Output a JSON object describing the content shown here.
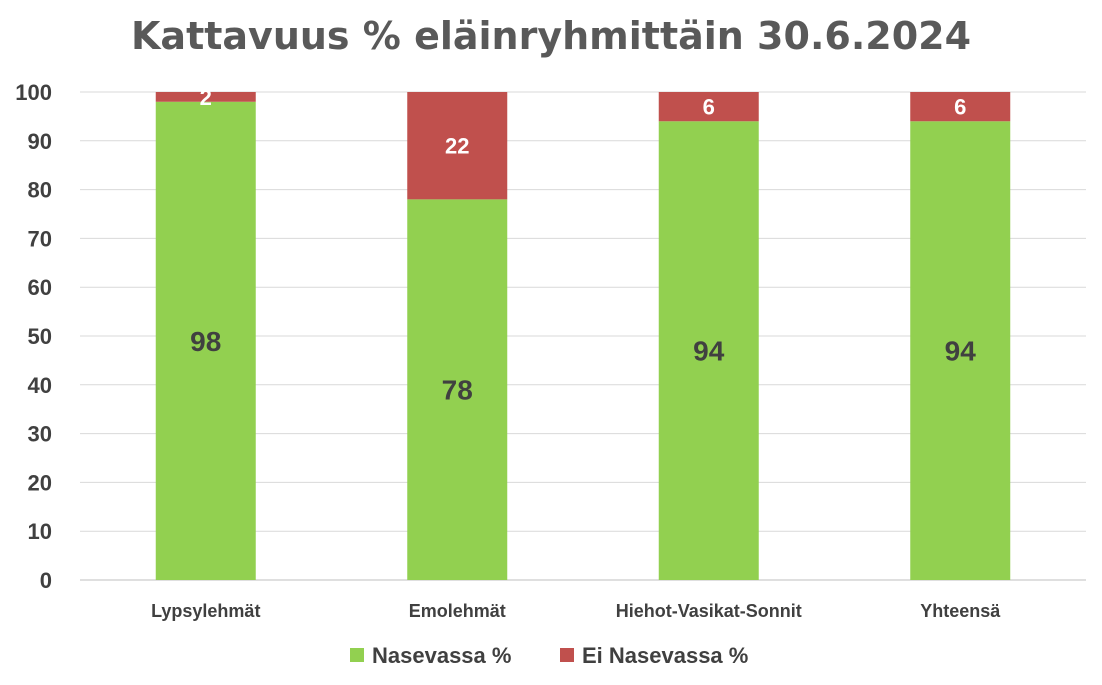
{
  "chart_data": {
    "type": "bar",
    "stacked": true,
    "title": "Kattavuus % eläinryhmittäin 30.6.2024",
    "categories": [
      "Lypsylehmät",
      "Emolehmät",
      "Hiehot-Vasikat-Sonnit",
      "Yhteensä"
    ],
    "series": [
      {
        "name": "Nasevassa %",
        "values": [
          98,
          78,
          94,
          94
        ],
        "color": "#92d050"
      },
      {
        "name": "Ei Nasevassa %",
        "values": [
          2,
          22,
          6,
          6
        ],
        "color": "#c0504d"
      }
    ],
    "ylim": [
      0,
      100
    ],
    "yticks": [
      0,
      10,
      20,
      30,
      40,
      50,
      60,
      70,
      80,
      90,
      100
    ],
    "grid": true,
    "legend": "bottom",
    "data_labels": true
  }
}
